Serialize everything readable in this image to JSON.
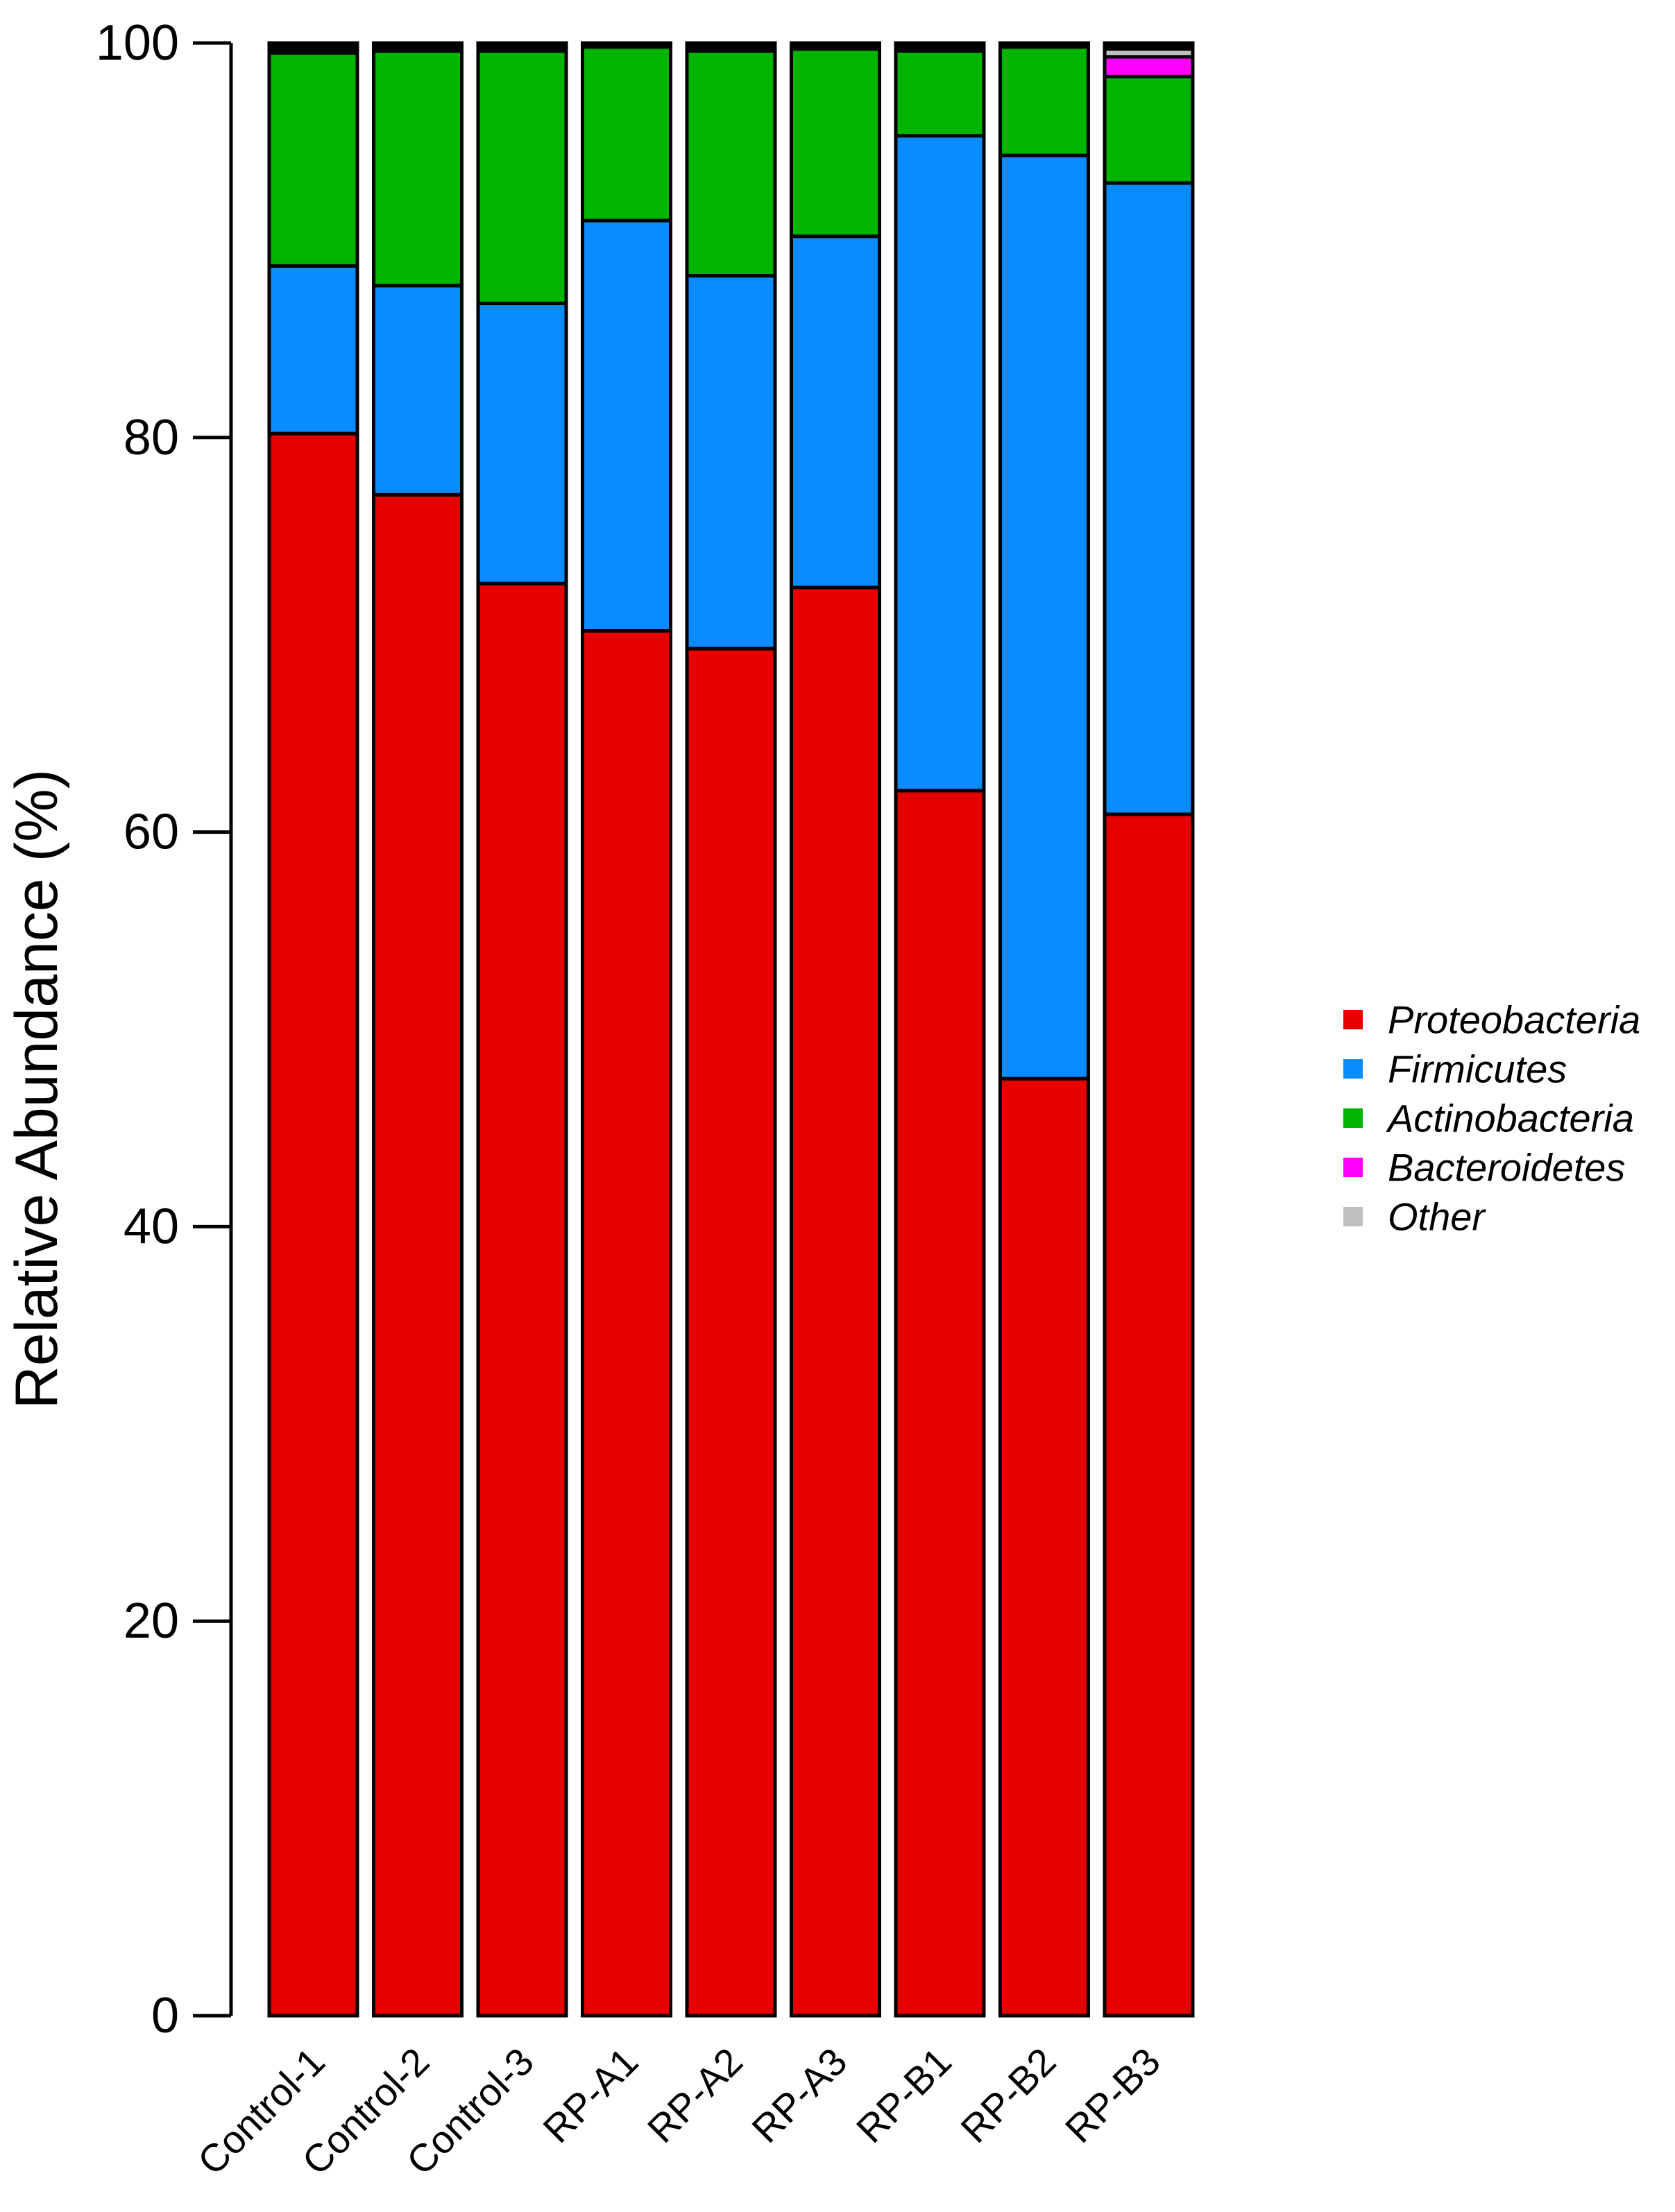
{
  "chart_data": {
    "type": "bar",
    "stacked": true,
    "title": "",
    "xlabel": "",
    "ylabel": "Relative Abundance (%)",
    "ylim": [
      0,
      100
    ],
    "yticks": [
      0,
      20,
      40,
      60,
      80,
      100
    ],
    "grid": false,
    "legend_position": "right",
    "categories": [
      "Control-1",
      "Control-2",
      "Control-3",
      "RP-A1",
      "RP-A2",
      "RP-A3",
      "RP-B1",
      "RP-B2",
      "RP-B3"
    ],
    "series": [
      {
        "name": "Proteobacteria",
        "color": "#e60000",
        "values": [
          80.2,
          77.1,
          72.6,
          70.2,
          69.3,
          72.4,
          62.1,
          47.5,
          60.9
        ]
      },
      {
        "name": "Firmicutes",
        "color": "#0a8cff",
        "values": [
          8.5,
          10.6,
          14.2,
          20.8,
          18.9,
          17.8,
          33.2,
          46.8,
          32.0
        ]
      },
      {
        "name": "Actinobacteria",
        "color": "#00b400",
        "values": [
          10.8,
          11.9,
          12.8,
          8.8,
          11.4,
          9.5,
          4.3,
          5.5,
          5.4
        ]
      },
      {
        "name": "Bacteroidetes",
        "color": "#ff00ff",
        "values": [
          0.0,
          0.0,
          0.0,
          0.0,
          0.0,
          0.0,
          0.0,
          0.0,
          1.0
        ]
      },
      {
        "name": "Other",
        "color": "#c0c0c0",
        "values": [
          0.0,
          0.0,
          0.0,
          0.0,
          0.0,
          0.0,
          0.0,
          0.0,
          0.4
        ]
      },
      {
        "name": "",
        "color": "#000000",
        "values": [
          0.5,
          0.4,
          0.4,
          0.2,
          0.4,
          0.3,
          0.4,
          0.2,
          0.3
        ]
      }
    ],
    "legend": [
      {
        "label": "Proteobacteria",
        "color": "#e60000"
      },
      {
        "label": "Firmicutes",
        "color": "#0a8cff"
      },
      {
        "label": "Actinobacteria",
        "color": "#00b400"
      },
      {
        "label": "Bacteroidetes",
        "color": "#ff00ff"
      },
      {
        "label": "Other",
        "color": "#c0c0c0"
      }
    ]
  }
}
